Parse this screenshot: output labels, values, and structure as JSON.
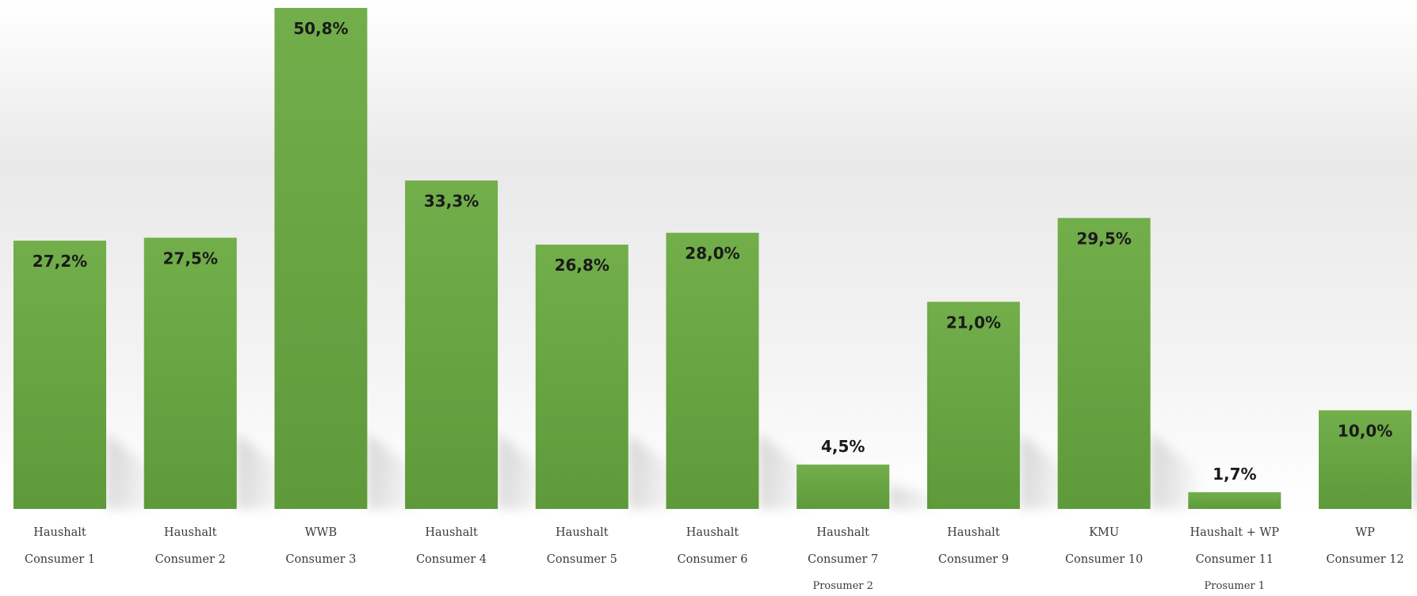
{
  "chart_data": {
    "type": "bar",
    "categories": [
      {
        "type": "Haushalt",
        "name": "Consumer 1",
        "extra": ""
      },
      {
        "type": "Haushalt",
        "name": "Consumer 2",
        "extra": ""
      },
      {
        "type": "WWB",
        "name": "Consumer 3",
        "extra": ""
      },
      {
        "type": "Haushalt",
        "name": "Consumer 4",
        "extra": ""
      },
      {
        "type": "Haushalt",
        "name": "Consumer 5",
        "extra": ""
      },
      {
        "type": "Haushalt",
        "name": "Consumer 6",
        "extra": ""
      },
      {
        "type": "Haushalt",
        "name": "Consumer 7",
        "extra": "Prosumer 2"
      },
      {
        "type": "Haushalt",
        "name": "Consumer 9",
        "extra": ""
      },
      {
        "type": "KMU",
        "name": "Consumer 10",
        "extra": ""
      },
      {
        "type": "Haushalt + WP",
        "name": "Consumer 11",
        "extra": "Prosumer 1"
      },
      {
        "type": "WP",
        "name": "Consumer 12",
        "extra": ""
      }
    ],
    "values": [
      27.2,
      27.5,
      50.8,
      33.3,
      26.8,
      28.0,
      4.5,
      21.0,
      29.5,
      1.7,
      10.0
    ],
    "value_labels": [
      "27,2%",
      "27,5%",
      "50,8%",
      "33,3%",
      "26,8%",
      "28,0%",
      "4,5%",
      "21,0%",
      "29,5%",
      "1,7%",
      "10,0%"
    ],
    "title": "",
    "xlabel": "",
    "ylabel": "",
    "ylim": [
      0,
      50.8
    ],
    "grid": false,
    "legend": "none",
    "colors": {
      "bar_light": "#72ae4a",
      "bar_dark": "#5e9a3a",
      "label_text": "#1a1a1a",
      "category_text": "#3a3a3a",
      "background_top": "#ffffff",
      "background_mid": "#e9e9e9"
    }
  }
}
